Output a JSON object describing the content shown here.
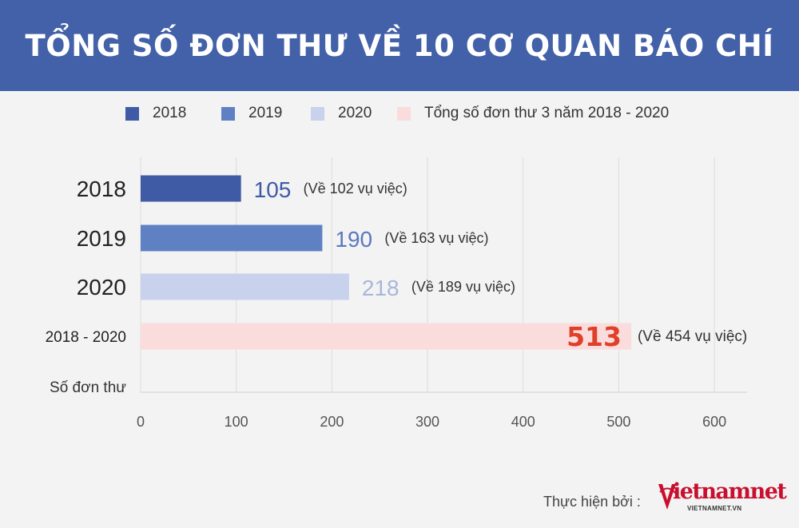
{
  "title": "TỔNG SỐ ĐƠN THƯ VỀ 10 CƠ QUAN BÁO CHÍ",
  "legend": [
    {
      "label": "2018",
      "color": "#3f5ba5"
    },
    {
      "label": "2019",
      "color": "#6080c4"
    },
    {
      "label": "2020",
      "color": "#c9d2ec"
    },
    {
      "label": "Tổng số đơn thư 3 năm 2018 - 2020",
      "color": "#fbdcdc"
    }
  ],
  "chart_data": {
    "type": "bar",
    "orientation": "horizontal",
    "categories": [
      "2018",
      "2019",
      "2020",
      "2018 - 2020"
    ],
    "values": [
      105,
      190,
      218,
      513
    ],
    "value_labels": [
      "105",
      "190",
      "218",
      "513"
    ],
    "annotations": [
      "(Về 102 vụ việc)",
      "(Về 163 vụ việc)",
      "(Về 189 vụ việc)",
      "(Về 454 vụ việc)"
    ],
    "bar_colors": [
      "#3f5ba5",
      "#6080c4",
      "#c9d2ec",
      "#fbdcdc"
    ],
    "value_label_colors": [
      "#3f5ba5",
      "#5a78bf",
      "#a9b6dc",
      "#e0402a"
    ],
    "x_ticks": [
      0,
      100,
      200,
      300,
      400,
      500,
      600
    ],
    "xlim": [
      0,
      630
    ],
    "axis_caption": "Số đơn thư",
    "grid": true
  },
  "footer": {
    "credit": "Thực hiện bởi :",
    "logo_text": "ietnamnet",
    "logo_sub": "VIETNAMNET.VN"
  }
}
